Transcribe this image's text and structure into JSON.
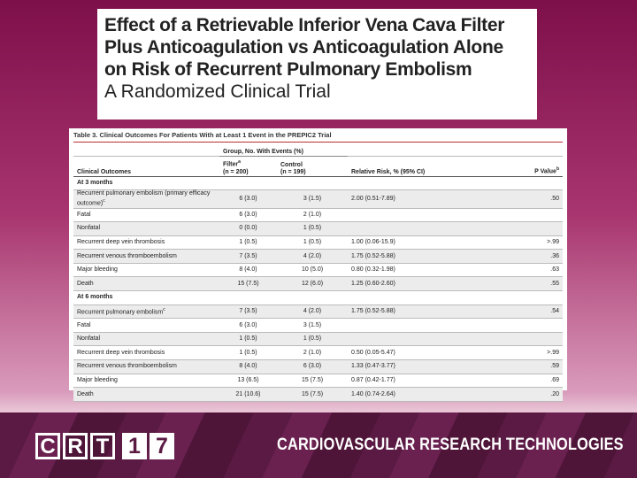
{
  "header": {
    "title_lines": [
      "Effect of a Retrievable Inferior Vena Cava Filter",
      "Plus Anticoagulation vs Anticoagulation Alone",
      "on Risk of Recurrent Pulmonary Embolism"
    ],
    "subtitle": "A Randomized Clinical Trial"
  },
  "table": {
    "caption": "Table 3. Clinical Outcomes For Patients With at Least 1 Event in the PREPIC2 Trial",
    "group_header": "Group, No. With Events (%)",
    "columns": [
      {
        "label": "Clinical Outcomes"
      },
      {
        "label": "Filter",
        "sub": "(n = 200)",
        "sup": "a"
      },
      {
        "label": "Control",
        "sub": "(n = 199)"
      },
      {
        "label": "Relative Risk, % (95% CI)"
      },
      {
        "label": "P Value",
        "sup": "b"
      }
    ],
    "sections": [
      {
        "label": "At 3 months",
        "rows": [
          {
            "cells": [
              "Recurrent pulmonary embolism (primary efficacy outcome)",
              "6 (3.0)",
              "3 (1.5)",
              "2.00 (0.51-7.89)",
              ".50"
            ],
            "sup": "c"
          },
          {
            "cells": [
              "Fatal",
              "6 (3.0)",
              "2 (1.0)"
            ]
          },
          {
            "cells": [
              "Nonfatal",
              "0 (0.0)",
              "1 (0.5)"
            ]
          },
          {
            "cells": [
              "Recurrent deep vein thrombosis",
              "1 (0.5)",
              "1 (0.5)",
              "1.00 (0.06-15.9)",
              ">.99"
            ]
          },
          {
            "cells": [
              "Recurrent venous thromboembolism",
              "7 (3.5)",
              "4 (2.0)",
              "1.75 (0.52-5.88)",
              ".36"
            ]
          },
          {
            "cells": [
              "Major bleeding",
              "8 (4.0)",
              "10 (5.0)",
              "0.80 (0.32-1.98)",
              ".63"
            ]
          },
          {
            "cells": [
              "Death",
              "15 (7.5)",
              "12 (6.0)",
              "1.25 (0.60-2.60)",
              ".55"
            ]
          }
        ]
      },
      {
        "label": "At 6 months",
        "rows": [
          {
            "cells": [
              "Recurrent pulmonary embolism",
              "7 (3.5)",
              "4 (2.0)",
              "1.75 (0.52-5.88)",
              ".54"
            ],
            "sup": "c"
          },
          {
            "cells": [
              "Fatal",
              "6 (3.0)",
              "3 (1.5)"
            ]
          },
          {
            "cells": [
              "Nonfatal",
              "1 (0.5)",
              "1 (0.5)"
            ]
          },
          {
            "cells": [
              "Recurrent deep vein thrombosis",
              "1 (0.5)",
              "2 (1.0)",
              "0.50 (0.05-5.47)",
              ">.99"
            ]
          },
          {
            "cells": [
              "Recurrent venous thromboembolism",
              "8 (4.0)",
              "6 (3.0)",
              "1.33 (0.47-3.77)",
              ".59"
            ]
          },
          {
            "cells": [
              "Major bleeding",
              "13 (6.5)",
              "15 (7.5)",
              "0.87 (0.42-1.77)",
              ".69"
            ]
          },
          {
            "cells": [
              "Death",
              "21 (10.6)",
              "15 (7.5)",
              "1.40 (0.74-2.64)",
              ".20"
            ]
          }
        ]
      }
    ]
  },
  "footer": {
    "logo_letters": [
      "C",
      "R",
      "T"
    ],
    "logo_number": [
      "1",
      "7"
    ],
    "org": "CARDIOVASCULAR RESEARCH TECHNOLOGIES"
  }
}
